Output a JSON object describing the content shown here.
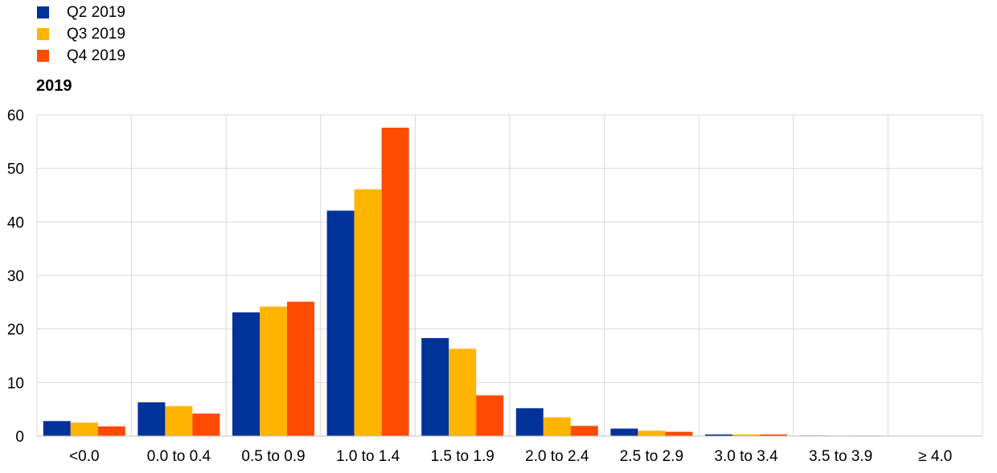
{
  "legend": [
    {
      "label": "Q2 2019",
      "color": "#003299"
    },
    {
      "label": "Q3 2019",
      "color": "#FFB400"
    },
    {
      "label": "Q4 2019",
      "color": "#FF4B00"
    }
  ],
  "chart_data": {
    "type": "bar",
    "title": "2019",
    "xlabel": "",
    "ylabel": "",
    "ylim": [
      0,
      60
    ],
    "yticks": [
      0,
      10,
      20,
      30,
      40,
      50,
      60
    ],
    "grid": true,
    "legend_position": "top-left",
    "categories": [
      "<0.0",
      "0.0 to 0.4",
      "0.5 to 0.9",
      "1.0 to 1.4",
      "1.5 to 1.9",
      "2.0 to 2.4",
      "2.5 to 2.9",
      "3.0 to 3.4",
      "3.5 to 3.9",
      "≥ 4.0"
    ],
    "series": [
      {
        "name": "Q2 2019",
        "color": "#003299",
        "values": [
          2.8,
          6.3,
          23.1,
          42.1,
          18.3,
          5.2,
          1.4,
          0.3,
          0.1,
          0.0
        ]
      },
      {
        "name": "Q3 2019",
        "color": "#FFB400",
        "values": [
          2.5,
          5.6,
          24.2,
          46.1,
          16.3,
          3.5,
          1.0,
          0.3,
          0.1,
          0.0
        ]
      },
      {
        "name": "Q4 2019",
        "color": "#FF4B00",
        "values": [
          1.8,
          4.2,
          25.1,
          57.6,
          7.6,
          1.9,
          0.8,
          0.3,
          0.1,
          0.0
        ]
      }
    ]
  }
}
